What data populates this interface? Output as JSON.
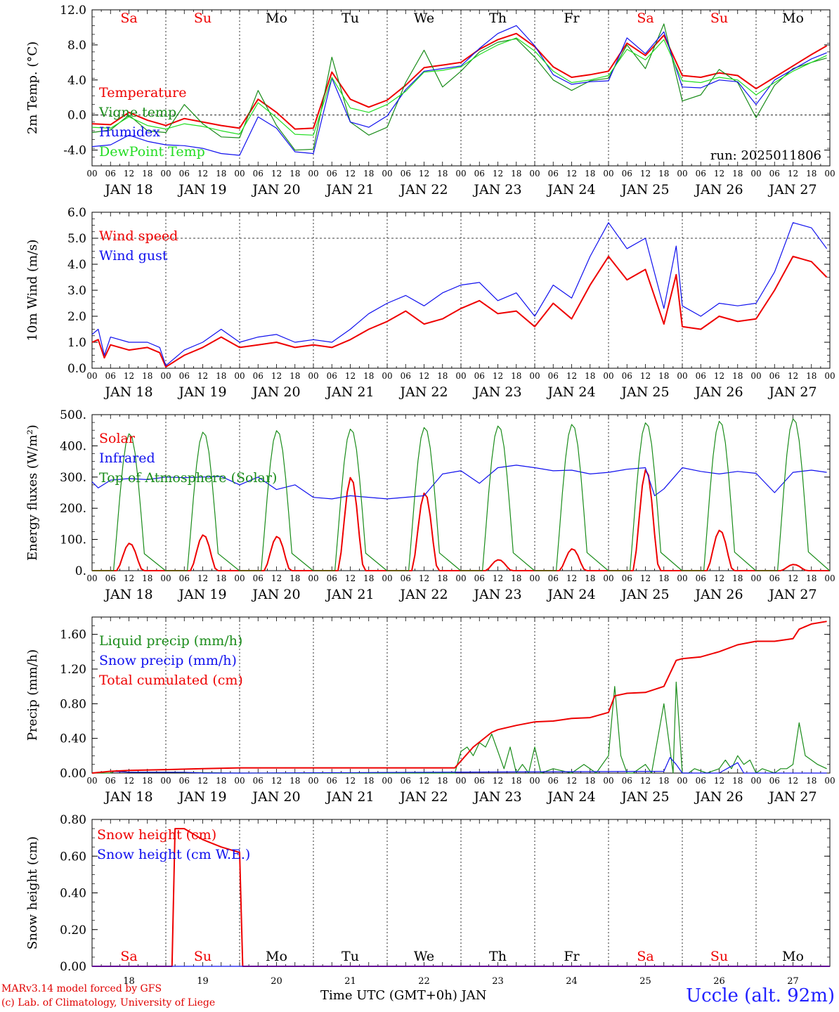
{
  "footer": {
    "credit_line1": "MARv3.14 model forced by GFS",
    "credit_line2": "(c) Lab. of Climatology, University of Liege",
    "xlabel": "Time UTC (GMT+0h) JAN",
    "station": "Uccle (alt. 92m)"
  },
  "colors": {
    "red": "#ee0000",
    "green": "#1a8c1a",
    "blue": "#1010ee",
    "light_green": "#22dd22",
    "weekend": "#ee0000",
    "weekday": "#000000"
  },
  "days": [
    "Sa",
    "Su",
    "Mo",
    "Tu",
    "We",
    "Th",
    "Fr",
    "Sa",
    "Su",
    "Mo"
  ],
  "weekend_flags": [
    true,
    true,
    false,
    false,
    false,
    false,
    false,
    true,
    true,
    false
  ],
  "date_labels": [
    "JAN 18",
    "JAN 19",
    "JAN 20",
    "JAN 21",
    "JAN 22",
    "JAN 23",
    "JAN 24",
    "JAN 25",
    "JAN 26",
    "JAN 27"
  ],
  "hour_labels": [
    "00",
    "06",
    "12",
    "18"
  ],
  "bottom_day_numbers": [
    "18",
    "19",
    "20",
    "21",
    "22",
    "23",
    "24",
    "25",
    "26",
    "27"
  ],
  "chart_data": [
    {
      "type": "line",
      "ylabel": "2m Temp. (°C)",
      "ylim": [
        -5.8,
        12.0
      ],
      "yticks": [
        "-4.0",
        "0.0",
        "4.0",
        "8.0",
        "12.0"
      ],
      "ytick_values": [
        -4,
        0,
        4,
        8,
        12
      ],
      "reference_line": 0,
      "annotation": "run: 2025011806",
      "x_unit": "hours since JAN 18 00 UTC",
      "series": [
        {
          "name": "Temperature",
          "color": "red",
          "x": [
            0,
            6,
            12,
            18,
            24,
            30,
            36,
            42,
            48,
            54,
            60,
            66,
            72,
            78,
            84,
            90,
            96,
            102,
            108,
            114,
            120,
            126,
            132,
            138,
            144,
            150,
            156,
            162,
            168,
            174,
            180,
            186,
            192,
            198,
            204,
            210,
            216,
            222,
            228,
            234,
            239
          ],
          "values": [
            -1.0,
            -1.1,
            0.3,
            -0.6,
            -1.2,
            -0.4,
            -0.8,
            -1.2,
            -1.5,
            1.8,
            0.3,
            -1.6,
            -1.5,
            4.9,
            1.8,
            0.9,
            1.7,
            3.4,
            5.4,
            5.7,
            6.0,
            7.5,
            8.6,
            9.3,
            7.8,
            5.5,
            4.3,
            4.6,
            5.0,
            8.2,
            6.8,
            9.1,
            4.5,
            4.3,
            4.8,
            4.5,
            3.0,
            4.3,
            5.6,
            6.9,
            7.9
          ]
        },
        {
          "name": "Vigne temp",
          "color": "green",
          "x": [
            0,
            6,
            12,
            18,
            24,
            30,
            36,
            42,
            48,
            54,
            60,
            66,
            72,
            78,
            84,
            90,
            96,
            102,
            108,
            114,
            120,
            126,
            132,
            138,
            144,
            150,
            156,
            162,
            168,
            174,
            180,
            186,
            192,
            198,
            204,
            210,
            216,
            222,
            228,
            234,
            239
          ],
          "values": [
            -2.0,
            -1.7,
            0.0,
            -1.8,
            -2.0,
            1.2,
            -1.0,
            -2.5,
            -2.6,
            2.8,
            -1.2,
            -4.0,
            -3.9,
            6.6,
            -0.8,
            -2.3,
            -1.4,
            3.7,
            7.4,
            3.2,
            5.0,
            7.2,
            8.3,
            8.7,
            6.6,
            4.0,
            2.8,
            3.9,
            4.2,
            8.0,
            5.3,
            10.4,
            1.6,
            2.3,
            5.2,
            3.7,
            -0.3,
            3.4,
            5.3,
            6.0,
            6.5
          ]
        },
        {
          "name": "Humidex",
          "color": "blue",
          "x": [
            0,
            6,
            12,
            18,
            24,
            30,
            36,
            42,
            48,
            54,
            60,
            66,
            72,
            78,
            84,
            90,
            96,
            102,
            108,
            114,
            120,
            126,
            132,
            138,
            144,
            150,
            156,
            162,
            168,
            174,
            180,
            186,
            192,
            198,
            204,
            210,
            216,
            222,
            228,
            234,
            239
          ],
          "values": [
            -3.6,
            -3.4,
            -2.3,
            -3.0,
            -3.4,
            -3.5,
            -3.8,
            -4.4,
            -4.6,
            -0.2,
            -1.5,
            -4.2,
            -4.4,
            4.2,
            -0.8,
            -1.4,
            -0.1,
            2.9,
            5.0,
            5.3,
            5.6,
            7.6,
            9.3,
            10.2,
            7.9,
            4.6,
            3.5,
            3.8,
            3.9,
            8.8,
            7.0,
            9.5,
            3.2,
            3.1,
            4.0,
            3.8,
            1.2,
            4.0,
            5.2,
            6.4,
            7.1
          ]
        },
        {
          "name": "DewPoint Temp",
          "color": "light_green",
          "x": [
            0,
            6,
            12,
            18,
            24,
            30,
            36,
            42,
            48,
            54,
            60,
            66,
            72,
            78,
            84,
            90,
            96,
            102,
            108,
            114,
            120,
            126,
            132,
            138,
            144,
            150,
            156,
            162,
            168,
            174,
            180,
            186,
            192,
            198,
            204,
            210,
            216,
            222,
            228,
            234,
            239
          ],
          "values": [
            -1.4,
            -1.5,
            -0.2,
            -1.2,
            -1.6,
            -1.0,
            -1.3,
            -1.8,
            -2.2,
            1.4,
            -0.3,
            -2.2,
            -2.3,
            4.3,
            0.8,
            0.3,
            1.2,
            2.7,
            4.9,
            5.1,
            5.5,
            6.9,
            8.0,
            8.8,
            7.3,
            5.0,
            3.7,
            4.0,
            4.5,
            7.5,
            6.3,
            8.6,
            3.9,
            3.7,
            4.3,
            4.0,
            2.3,
            3.7,
            5.0,
            6.0,
            6.8
          ]
        }
      ]
    },
    {
      "type": "line",
      "ylabel": "10m Wind (m/s)",
      "ylim": [
        0,
        6.0
      ],
      "yticks": [
        "0.0",
        "1.0",
        "2.0",
        "3.0",
        "4.0",
        "5.0",
        "6.0"
      ],
      "ytick_values": [
        0,
        1,
        2,
        3,
        4,
        5,
        6
      ],
      "reference_line": 5,
      "x_unit": "hours since JAN 18 00 UTC",
      "series": [
        {
          "name": "Wind speed",
          "color": "red",
          "x": [
            0,
            2,
            4,
            6,
            12,
            18,
            22,
            24,
            30,
            36,
            42,
            48,
            54,
            60,
            66,
            72,
            78,
            84,
            90,
            96,
            102,
            108,
            114,
            120,
            126,
            132,
            138,
            144,
            150,
            156,
            162,
            168,
            174,
            180,
            186,
            190,
            192,
            198,
            204,
            210,
            216,
            222,
            228,
            234,
            239
          ],
          "values": [
            1.0,
            1.1,
            0.4,
            0.9,
            0.7,
            0.8,
            0.6,
            0.05,
            0.5,
            0.8,
            1.2,
            0.8,
            0.9,
            1.0,
            0.8,
            0.9,
            0.8,
            1.1,
            1.5,
            1.8,
            2.2,
            1.7,
            1.9,
            2.3,
            2.6,
            2.1,
            2.2,
            1.6,
            2.5,
            1.9,
            3.2,
            4.3,
            3.4,
            3.8,
            1.7,
            3.6,
            1.6,
            1.5,
            2.0,
            1.8,
            1.9,
            3.0,
            4.3,
            4.1,
            3.5
          ]
        },
        {
          "name": "Wind gust",
          "color": "blue",
          "x": [
            0,
            2,
            4,
            6,
            12,
            18,
            22,
            24,
            30,
            36,
            42,
            48,
            54,
            60,
            66,
            72,
            78,
            84,
            90,
            96,
            102,
            108,
            114,
            120,
            126,
            132,
            138,
            144,
            150,
            156,
            162,
            168,
            174,
            180,
            186,
            190,
            192,
            198,
            204,
            210,
            216,
            222,
            228,
            234,
            239
          ],
          "values": [
            1.3,
            1.5,
            0.5,
            1.2,
            1.0,
            1.0,
            0.8,
            0.1,
            0.7,
            1.0,
            1.5,
            1.0,
            1.2,
            1.3,
            1.0,
            1.1,
            1.0,
            1.5,
            2.1,
            2.5,
            2.8,
            2.4,
            2.9,
            3.2,
            3.3,
            2.6,
            2.9,
            2.0,
            3.2,
            2.7,
            4.3,
            5.6,
            4.6,
            5.0,
            2.3,
            4.7,
            2.4,
            2.0,
            2.5,
            2.4,
            2.5,
            3.7,
            5.6,
            5.4,
            4.6
          ]
        }
      ]
    },
    {
      "type": "line",
      "ylabel": "Energy fluxes (W/m²)",
      "ylim": [
        0,
        500
      ],
      "yticks": [
        "0.",
        "100.",
        "200.",
        "300.",
        "400.",
        "500."
      ],
      "ytick_values": [
        0,
        100,
        200,
        300,
        400,
        500
      ],
      "x_unit": "hours since JAN 18 00 UTC",
      "day_peaks": {
        "toa_peak": [
          440,
          445,
          450,
          455,
          460,
          465,
          470,
          475,
          480,
          488
        ],
        "solar_peak": [
          88,
          115,
          110,
          300,
          250,
          35,
          70,
          325,
          130,
          20
        ],
        "sunrise_hour": 8,
        "sunset_hour": 16.5
      },
      "series": [
        {
          "name": "Solar",
          "color": "red"
        },
        {
          "name": "Infrared",
          "color": "blue",
          "x": [
            0,
            2,
            6,
            12,
            18,
            24,
            30,
            36,
            42,
            48,
            54,
            60,
            66,
            72,
            78,
            84,
            96,
            108,
            114,
            120,
            126,
            132,
            138,
            144,
            150,
            156,
            162,
            168,
            174,
            180,
            183,
            186,
            192,
            198,
            204,
            210,
            216,
            222,
            228,
            234,
            239
          ],
          "values": [
            285,
            265,
            290,
            295,
            292,
            300,
            298,
            300,
            302,
            275,
            300,
            260,
            275,
            235,
            230,
            240,
            230,
            240,
            310,
            320,
            280,
            330,
            338,
            330,
            320,
            322,
            310,
            315,
            325,
            330,
            240,
            262,
            330,
            318,
            310,
            318,
            312,
            250,
            315,
            322,
            315
          ]
        },
        {
          "name": "Top of Atmosphere (Solar)",
          "color": "green"
        }
      ]
    },
    {
      "type": "line",
      "ylabel": "Precip (mm/h)",
      "ylim": [
        0,
        1.8
      ],
      "yticks": [
        "0.00",
        "0.40",
        "0.80",
        "1.20",
        "1.60"
      ],
      "ytick_values": [
        0,
        0.4,
        0.8,
        1.2,
        1.6
      ],
      "x_unit": "hours since JAN 18 00 UTC",
      "series": [
        {
          "name": "Liquid precip (mm/h)",
          "color": "green",
          "x": [
            0,
            6,
            8,
            12,
            24,
            48,
            118,
            120,
            122,
            124,
            126,
            128,
            130,
            134,
            136,
            138,
            140,
            142,
            144,
            146,
            150,
            156,
            160,
            164,
            168,
            170,
            172,
            174,
            176,
            178,
            180,
            182,
            186,
            189,
            190,
            192,
            194,
            196,
            200,
            204,
            206,
            208,
            210,
            212,
            214,
            216,
            218,
            222,
            224,
            226,
            228,
            230,
            232,
            234,
            236,
            239
          ],
          "values": [
            0,
            0,
            0.03,
            0.01,
            0.01,
            0,
            0,
            0.25,
            0.3,
            0.2,
            0.35,
            0.3,
            0.45,
            0.05,
            0.3,
            0,
            0.1,
            0,
            0.3,
            0,
            0.05,
            0,
            0.1,
            0,
            0.2,
            1.0,
            0.2,
            0,
            0,
            0.05,
            0.1,
            0,
            0.8,
            0,
            1.05,
            0,
            0,
            0.05,
            0,
            0.05,
            0.15,
            0.05,
            0.2,
            0.1,
            0.15,
            0,
            0.05,
            0,
            0.05,
            0.05,
            0.1,
            0.58,
            0.2,
            0.15,
            0.1,
            0.05
          ]
        },
        {
          "name": "Snow precip (mm/h)",
          "color": "blue",
          "x": [
            0,
            6,
            12,
            24,
            30,
            36,
            48,
            186,
            188,
            190,
            192,
            204,
            210,
            212,
            214,
            239
          ],
          "values": [
            0,
            0.02,
            0.01,
            0.01,
            0.01,
            0,
            0,
            0.02,
            0.18,
            0.1,
            0,
            0,
            0.12,
            0,
            0,
            0
          ]
        },
        {
          "name": "Total cumulated (cm)",
          "color": "red",
          "x": [
            0,
            6,
            12,
            24,
            36,
            48,
            60,
            72,
            84,
            96,
            108,
            118,
            124,
            130,
            132,
            138,
            144,
            150,
            156,
            162,
            168,
            170,
            174,
            180,
            186,
            190,
            192,
            198,
            204,
            210,
            216,
            222,
            228,
            230,
            234,
            239
          ],
          "values": [
            0,
            0.02,
            0.03,
            0.04,
            0.05,
            0.06,
            0.06,
            0.06,
            0.06,
            0.06,
            0.06,
            0.06,
            0.3,
            0.47,
            0.5,
            0.55,
            0.59,
            0.6,
            0.63,
            0.64,
            0.7,
            0.89,
            0.92,
            0.93,
            1.0,
            1.3,
            1.32,
            1.34,
            1.4,
            1.48,
            1.52,
            1.52,
            1.55,
            1.66,
            1.72,
            1.75
          ]
        }
      ]
    },
    {
      "type": "line",
      "ylabel": "Snow height (cm)",
      "ylim": [
        0,
        0.8
      ],
      "yticks": [
        "0.00",
        "0.20",
        "0.40",
        "0.60",
        "0.80"
      ],
      "ytick_values": [
        0,
        0.2,
        0.4,
        0.6,
        0.8
      ],
      "x_unit": "hours since JAN 18 00 UTC",
      "series": [
        {
          "name": "Snow height (cm)",
          "color": "red",
          "x": [
            0,
            26,
            27,
            30,
            36,
            42,
            48,
            49,
            240
          ],
          "values": [
            0,
            0,
            0.75,
            0.75,
            0.69,
            0.65,
            0.62,
            0,
            0
          ]
        },
        {
          "name": "Snow height (cm W.E.)",
          "color": "blue",
          "x": [
            0,
            240
          ],
          "values": [
            0,
            0
          ]
        }
      ]
    }
  ]
}
